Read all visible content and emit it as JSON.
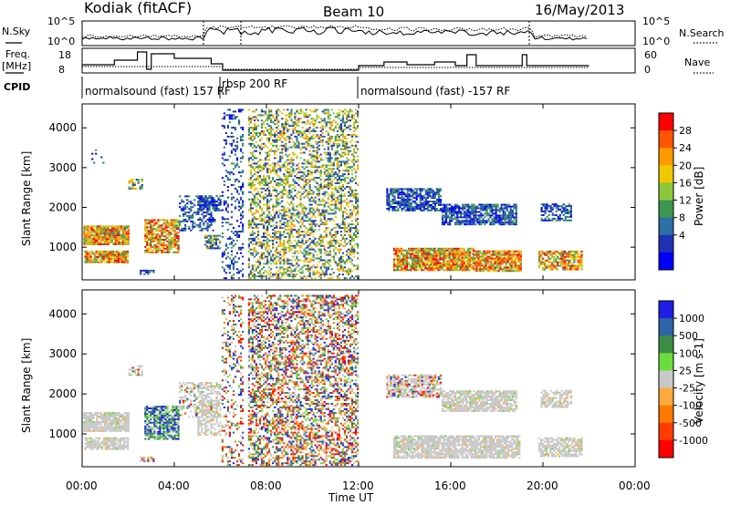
{
  "header": {
    "station": "Kodiak (fitACF)",
    "beam": "Beam 10",
    "date": "16/May/2013"
  },
  "summary_panels": {
    "nsky": {
      "label": "N.Sky",
      "ticks": [
        "10^5",
        "10^0"
      ]
    },
    "nsearch": {
      "label": "N.Search",
      "ticks": [
        "10^5",
        "10^0"
      ]
    },
    "freq": {
      "label_line1": "Freq.",
      "label_line2": "[MHz]",
      "ticks": [
        "18",
        "8"
      ]
    },
    "nave": {
      "label": "Nave",
      "ticks": [
        "60",
        "0"
      ]
    },
    "cpid": {
      "label": "CPID",
      "segments": [
        {
          "text": "normalsound (fast) 157 RF",
          "start_hour": 0.0,
          "end_hour": 6.05
        },
        {
          "text": "rbsp 200 RF",
          "start_hour": 6.05,
          "end_hour": 12.0
        },
        {
          "text": "normalsound (fast) -157 RF",
          "start_hour": 12.0,
          "end_hour": 22.0
        }
      ]
    }
  },
  "colorbars": {
    "power": {
      "title": "Power [dB]",
      "tick_labels": [
        "28",
        "24",
        "20",
        "16",
        "12",
        "8",
        "4"
      ],
      "colors": [
        "#ff0000",
        "#ff5500",
        "#ff9900",
        "#f0c800",
        "#8cc83c",
        "#3c9650",
        "#2d6ea5",
        "#2032b4",
        "#0000ff"
      ]
    },
    "velocity": {
      "title": "Velocity [m s-1]",
      "tick_labels": [
        "1000",
        "500",
        "100",
        "25",
        "-25",
        "-100",
        "-500",
        "-1000"
      ],
      "colors": [
        "#1e1ee6",
        "#2f64a8",
        "#3c8c46",
        "#6cdc3c",
        "#c8c8c8",
        "#ffaa3c",
        "#ff7800",
        "#ff3c00",
        "#ff0000"
      ]
    }
  },
  "x_axis": {
    "title": "Time UT",
    "tick_labels": [
      "00:00",
      "04:00",
      "08:00",
      "12:00",
      "16:00",
      "20:00",
      "00:00"
    ]
  },
  "chart_data": [
    {
      "type": "heatmap",
      "name": "Power",
      "ylabel": "Slant Range [km]",
      "xlabel": "Time UT",
      "y_ticks": [
        "1000",
        "2000",
        "3000",
        "4000"
      ],
      "xlim_hours": [
        0,
        24
      ],
      "ylim_km": [
        180,
        4600
      ],
      "colorbar": "Power [dB]",
      "regions": [
        {
          "t0": 0.05,
          "t1": 2.0,
          "r0": 1050,
          "r1": 1520,
          "level": "mixed_high",
          "density": 0.95
        },
        {
          "t0": 0.1,
          "t1": 2.0,
          "r0": 600,
          "r1": 900,
          "level": "mixed_high",
          "density": 0.9
        },
        {
          "t0": 2.0,
          "t1": 2.6,
          "r0": 2450,
          "r1": 2700,
          "level": "mixed_mid",
          "density": 0.6
        },
        {
          "t0": 2.7,
          "t1": 4.2,
          "r0": 850,
          "r1": 1700,
          "level": "mixed_high",
          "density": 0.75
        },
        {
          "t0": 4.2,
          "t1": 5.8,
          "r0": 1400,
          "r1": 2300,
          "level": "low",
          "density": 0.45
        },
        {
          "t0": 5.0,
          "t1": 6.0,
          "r0": 1900,
          "r1": 2300,
          "level": "low",
          "density": 0.7
        },
        {
          "t0": 5.3,
          "t1": 6.0,
          "r0": 950,
          "r1": 1300,
          "level": "mixed_mid",
          "density": 0.8
        },
        {
          "t0": 6.05,
          "t1": 7.0,
          "r0": 200,
          "r1": 4450,
          "level": "low",
          "density": 0.25
        },
        {
          "t0": 7.2,
          "t1": 12.0,
          "r0": 200,
          "r1": 4450,
          "level": "mixed_mid",
          "density": 0.45
        },
        {
          "t0": 13.2,
          "t1": 15.6,
          "r0": 1900,
          "r1": 2450,
          "level": "low",
          "density": 0.75
        },
        {
          "t0": 15.6,
          "t1": 18.8,
          "r0": 1550,
          "r1": 2050,
          "level": "low",
          "density": 0.8
        },
        {
          "t0": 13.5,
          "t1": 17.0,
          "r0": 400,
          "r1": 950,
          "level": "mixed_high",
          "density": 0.85
        },
        {
          "t0": 17.0,
          "t1": 19.0,
          "r0": 380,
          "r1": 920,
          "level": "mixed_high",
          "density": 0.85
        },
        {
          "t0": 19.8,
          "t1": 21.7,
          "r0": 420,
          "r1": 880,
          "level": "mixed_high",
          "density": 0.75
        },
        {
          "t0": 19.9,
          "t1": 21.2,
          "r0": 1650,
          "r1": 2100,
          "level": "low",
          "density": 0.6
        },
        {
          "t0": 0.4,
          "t1": 0.9,
          "r0": 3100,
          "r1": 3450,
          "level": "low",
          "density": 0.15
        },
        {
          "t0": 2.5,
          "t1": 3.1,
          "r0": 300,
          "r1": 420,
          "level": "low",
          "density": 0.7
        }
      ]
    },
    {
      "type": "heatmap",
      "name": "Velocity",
      "ylabel": "Slant Range [km]",
      "xlabel": "Time UT",
      "y_ticks": [
        "1000",
        "2000",
        "3000",
        "4000"
      ],
      "xlim_hours": [
        0,
        24
      ],
      "ylim_km": [
        180,
        4600
      ],
      "colorbar": "Velocity [m s-1]",
      "regions": [
        {
          "t0": 0.05,
          "t1": 2.0,
          "r0": 1050,
          "r1": 1520,
          "level": "grey",
          "density": 0.9
        },
        {
          "t0": 0.1,
          "t1": 2.0,
          "r0": 600,
          "r1": 900,
          "level": "grey",
          "density": 0.85
        },
        {
          "t0": 2.0,
          "t1": 2.6,
          "r0": 2450,
          "r1": 2700,
          "level": "grey_mix",
          "density": 0.6
        },
        {
          "t0": 2.7,
          "t1": 4.2,
          "r0": 850,
          "r1": 1700,
          "level": "green_blue",
          "density": 0.75
        },
        {
          "t0": 4.2,
          "t1": 5.8,
          "r0": 1400,
          "r1": 2300,
          "level": "grey_mix",
          "density": 0.4
        },
        {
          "t0": 5.0,
          "t1": 6.0,
          "r0": 950,
          "r1": 2300,
          "level": "grey",
          "density": 0.55
        },
        {
          "t0": 6.05,
          "t1": 7.0,
          "r0": 200,
          "r1": 4450,
          "level": "random",
          "density": 0.25
        },
        {
          "t0": 7.2,
          "t1": 12.0,
          "r0": 200,
          "r1": 4450,
          "level": "random",
          "density": 0.5
        },
        {
          "t0": 13.2,
          "t1": 15.6,
          "r0": 1900,
          "r1": 2450,
          "level": "grey_mix",
          "density": 0.7
        },
        {
          "t0": 15.6,
          "t1": 18.8,
          "r0": 1550,
          "r1": 2050,
          "level": "grey",
          "density": 0.8
        },
        {
          "t0": 13.5,
          "t1": 19.0,
          "r0": 380,
          "r1": 950,
          "level": "grey",
          "density": 0.85
        },
        {
          "t0": 19.8,
          "t1": 21.7,
          "r0": 420,
          "r1": 880,
          "level": "grey",
          "density": 0.75
        },
        {
          "t0": 19.9,
          "t1": 21.2,
          "r0": 1650,
          "r1": 2100,
          "level": "grey",
          "density": 0.6
        },
        {
          "t0": 2.5,
          "t1": 3.1,
          "r0": 300,
          "r1": 420,
          "level": "grey_mix",
          "density": 0.7
        }
      ]
    }
  ]
}
